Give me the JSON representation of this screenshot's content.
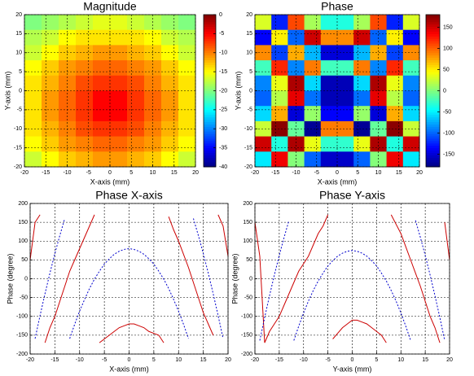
{
  "chart_data": [
    {
      "type": "heatmap",
      "title": "Magnitude",
      "x_label": "X-axis (mm)",
      "y_label": "Y-axis (mm)",
      "x": [
        -18,
        -14,
        -10,
        -6,
        -2,
        2,
        6,
        10,
        14,
        18
      ],
      "y": [
        18,
        14,
        10,
        6,
        2,
        -2,
        -6,
        -10,
        -14,
        -18
      ],
      "z": [
        [
          -20,
          -19,
          -18,
          -17,
          -16,
          -16,
          -17,
          -18,
          -19,
          -20
        ],
        [
          -18,
          -17,
          -15,
          -14,
          -14,
          -14,
          -14,
          -15,
          -17,
          -18
        ],
        [
          -17,
          -15,
          -13,
          -12,
          -11,
          -11,
          -12,
          -13,
          -15,
          -17
        ],
        [
          -15,
          -13,
          -11,
          -10,
          -9,
          -9,
          -10,
          -11,
          -13,
          -15
        ],
        [
          -14,
          -12,
          -10,
          -8,
          -7,
          -7,
          -8,
          -10,
          -12,
          -14
        ],
        [
          -14,
          -11,
          -9,
          -7,
          -5,
          -5,
          -7,
          -9,
          -11,
          -14
        ],
        [
          -14,
          -11,
          -9,
          -7,
          -5,
          -5,
          -7,
          -9,
          -11,
          -14
        ],
        [
          -14,
          -12,
          -10,
          -8,
          -7,
          -7,
          -8,
          -10,
          -12,
          -14
        ],
        [
          -15,
          -13,
          -11,
          -10,
          -9,
          -9,
          -10,
          -11,
          -13,
          -15
        ],
        [
          -17,
          -15,
          -13,
          -12,
          -11,
          -11,
          -12,
          -13,
          -15,
          -17
        ]
      ],
      "xlim": [
        -20,
        20
      ],
      "ylim": [
        -20,
        20
      ],
      "xticks": [
        -20,
        -15,
        -10,
        -5,
        0,
        5,
        10,
        15,
        20
      ],
      "yticks": [
        -20,
        -15,
        -10,
        -5,
        0,
        5,
        10,
        15,
        20
      ],
      "grid": true,
      "colormap": "jet",
      "clim": [
        -40,
        0
      ],
      "cticks": [
        -40,
        -35,
        -30,
        -25,
        -20,
        -15,
        -10,
        -5,
        0
      ]
    },
    {
      "type": "heatmap",
      "title": "Phase",
      "x_label": "X-axis (mm)",
      "y_label": "Y-axis (mm)",
      "x": [
        -18,
        -14,
        -10,
        -6,
        -2,
        2,
        6,
        10,
        14,
        18
      ],
      "y": [
        18,
        14,
        10,
        6,
        2,
        -2,
        -6,
        -10,
        -14,
        -18
      ],
      "z": [
        [
          32,
          -124,
          110,
          14,
          -34,
          -34,
          14,
          110,
          -124,
          32
        ],
        [
          -136,
          50,
          -100,
          152,
          86,
          86,
          152,
          -100,
          50,
          -136
        ],
        [
          86,
          -112,
          74,
          -70,
          -148,
          -148,
          -70,
          74,
          -112,
          86
        ],
        [
          -22,
          122,
          -88,
          92,
          -22,
          -22,
          92,
          -88,
          122,
          -22
        ],
        [
          -88,
          38,
          164,
          -58,
          -160,
          -160,
          -58,
          164,
          38,
          -88
        ],
        [
          -100,
          20,
          143,
          -95,
          -160,
          -160,
          -95,
          143,
          20,
          -100
        ],
        [
          -58,
          74,
          -148,
          8,
          -136,
          -136,
          8,
          -148,
          74,
          -58
        ],
        [
          26,
          176,
          -10,
          -172,
          92,
          92,
          -172,
          -10,
          176,
          26
        ],
        [
          152,
          -34,
          164,
          38,
          -28,
          -28,
          38,
          164,
          -34,
          152
        ],
        [
          -52,
          140,
          2,
          -100,
          -154,
          -154,
          -100,
          2,
          140,
          -52
        ]
      ],
      "xlim": [
        -20,
        20
      ],
      "ylim": [
        -20,
        20
      ],
      "xticks": [
        -20,
        -15,
        -10,
        -5,
        0,
        5,
        10,
        15,
        20
      ],
      "yticks": [
        -20,
        -15,
        -10,
        -5,
        0,
        5,
        10,
        15,
        20
      ],
      "grid": true,
      "colormap": "jet",
      "clim": [
        -180,
        180
      ],
      "cticks": [
        -150,
        -100,
        -50,
        0,
        50,
        100,
        150
      ]
    },
    {
      "type": "line",
      "title": "Phase X-axis",
      "x_label": "X-axis (mm)",
      "y_label": "Phase (degree)",
      "xlim": [
        -20,
        20
      ],
      "ylim": [
        -200,
        200
      ],
      "xticks": [
        -20,
        -15,
        -10,
        -5,
        0,
        5,
        10,
        15,
        20
      ],
      "yticks": [
        -200,
        -150,
        -100,
        -50,
        0,
        50,
        100,
        150,
        200
      ],
      "grid": true,
      "series": [
        {
          "color": "#cc0000",
          "style": "solid",
          "x": [
            -20,
            -19,
            -18,
            -17.5,
            -17,
            -16,
            -15,
            -14,
            -13,
            -12,
            -11,
            -10,
            -9,
            -8,
            -7,
            -6.5,
            -6,
            -5,
            -4,
            -3,
            -2,
            -1,
            0,
            1,
            2,
            3,
            4,
            5,
            6,
            7,
            7.5,
            8,
            9,
            10,
            11,
            12,
            13,
            14,
            15,
            16,
            17,
            17.5,
            18,
            19,
            20
          ],
          "values": [
            50,
            150,
            170,
            null,
            -170,
            -130,
            -100,
            -60,
            -20,
            20,
            50,
            80,
            110,
            140,
            170,
            null,
            -170,
            -160,
            -150,
            -140,
            -130,
            -125,
            -120,
            -120,
            -125,
            -130,
            -140,
            -145,
            -150,
            -170,
            null,
            165,
            130,
            100,
            65,
            30,
            -10,
            -50,
            -90,
            -120,
            -150,
            null,
            170,
            140,
            60
          ]
        },
        {
          "color": "#0000cc",
          "style": "dashed",
          "x": [
            -20,
            -19.5,
            -19,
            -18,
            -17,
            -16,
            -15,
            -14,
            -13,
            -12.5,
            -12,
            -11,
            -10,
            -9,
            -8,
            -7,
            -6,
            -5,
            -4,
            -3,
            -2,
            -1,
            0,
            1,
            2,
            3,
            4,
            5,
            6,
            7,
            8,
            9,
            10,
            11,
            12,
            12.5,
            13,
            14,
            15,
            16,
            17,
            18,
            19,
            19.5,
            20
          ],
          "values": [
            136,
            null,
            -159,
            -98,
            -40,
            15,
            67,
            115,
            160,
            null,
            -159,
            -121,
            -86,
            -55,
            -26,
            -1,
            20,
            39,
            53,
            65,
            73,
            78,
            80,
            78,
            73,
            65,
            53,
            39,
            20,
            -1,
            -26,
            -55,
            -86,
            -121,
            -159,
            null,
            160,
            115,
            67,
            15,
            -40,
            -98,
            -159,
            null,
            136
          ]
        }
      ]
    },
    {
      "type": "line",
      "title": "Phase Y-axis",
      "x_label": "Y-axis (mm)",
      "y_label": "Phase (degree)",
      "xlim": [
        -20,
        20
      ],
      "ylim": [
        -200,
        200
      ],
      "xticks": [
        -20,
        -15,
        -10,
        -5,
        0,
        5,
        10,
        15,
        20
      ],
      "yticks": [
        -200,
        -150,
        -100,
        -50,
        0,
        50,
        100,
        150,
        200
      ],
      "grid": true,
      "series": [
        {
          "color": "#cc0000",
          "style": "solid",
          "x": [
            -20,
            -19,
            -18,
            -17,
            -16,
            -15,
            -14,
            -13,
            -12,
            -11,
            -10,
            -9,
            -8,
            -7,
            -6,
            -5,
            -4.5,
            -4,
            -3,
            -2,
            -1,
            0,
            1,
            2,
            3,
            4,
            5,
            6,
            7,
            7.5,
            8,
            9,
            10,
            11,
            12,
            13,
            14,
            15,
            16,
            17,
            18,
            18.5,
            19,
            20
          ],
          "values": [
            150,
            60,
            -170,
            -140,
            -120,
            -100,
            -70,
            -40,
            -10,
            20,
            40,
            60,
            90,
            120,
            140,
            170,
            null,
            -160,
            -145,
            -130,
            -120,
            -110,
            -110,
            -115,
            -120,
            -130,
            -140,
            -150,
            -170,
            null,
            170,
            145,
            120,
            85,
            50,
            15,
            -20,
            -60,
            -100,
            -130,
            -170,
            null,
            150,
            50
          ]
        },
        {
          "color": "#0000cc",
          "style": "dashed",
          "x": [
            -20,
            -19.5,
            -19,
            -18,
            -17,
            -16,
            -15,
            -14,
            -13,
            -12.5,
            -12,
            -11,
            -10,
            -9,
            -8,
            -7,
            -6,
            -5,
            -4,
            -3,
            -2,
            -1,
            0,
            1,
            2,
            3,
            4,
            5,
            6,
            7,
            8,
            9,
            10,
            11,
            12,
            12.5,
            13,
            14,
            15,
            16,
            17,
            18,
            19,
            19.5,
            20
          ],
          "values": [
            131,
            null,
            -164,
            -103,
            -45,
            10,
            62,
            110,
            155,
            null,
            -164,
            -126,
            -91,
            -59,
            -31,
            -6,
            15,
            34,
            48,
            60,
            68,
            73,
            75,
            73,
            68,
            60,
            48,
            34,
            15,
            -6,
            -31,
            -59,
            -91,
            -126,
            -164,
            null,
            155,
            110,
            62,
            10,
            -45,
            -103,
            -164,
            null,
            131
          ]
        }
      ]
    }
  ]
}
